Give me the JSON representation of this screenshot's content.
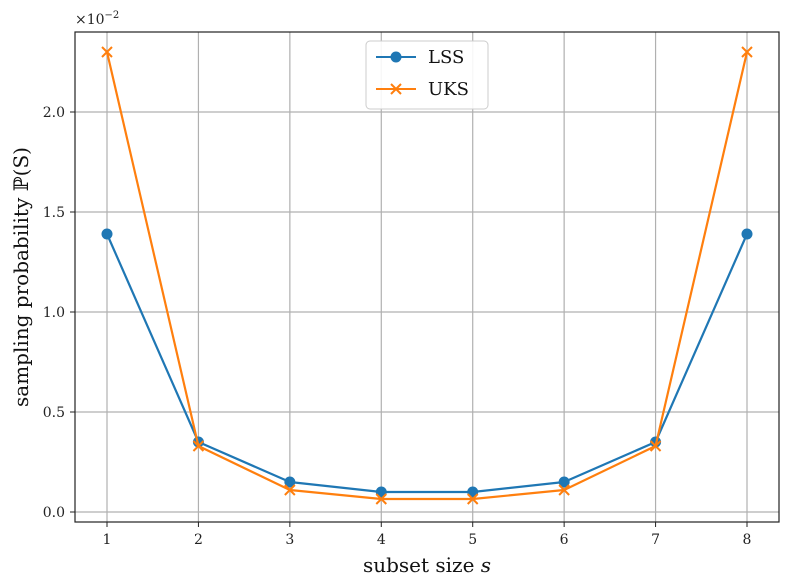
{
  "chart_data": {
    "type": "line",
    "x": [
      1,
      2,
      3,
      4,
      5,
      6,
      7,
      8
    ],
    "series": [
      {
        "name": "LSS",
        "values": [
          1.39,
          0.35,
          0.15,
          0.1,
          0.1,
          0.15,
          0.35,
          1.39
        ],
        "color": "#1f77b4",
        "marker": "circle"
      },
      {
        "name": "UKS",
        "values": [
          2.3,
          0.33,
          0.11,
          0.065,
          0.065,
          0.11,
          0.33,
          2.3
        ],
        "color": "#ff7f0e",
        "marker": "x"
      }
    ],
    "xlabel": "subset size ",
    "xlabel_var": "s",
    "ylabel": "sampling probability ",
    "ylabel_var": "ℙ(S)",
    "y_scale_label": "×10",
    "y_scale_exp": "−2",
    "xlim": [
      0.65,
      8.35
    ],
    "ylim": [
      -0.05,
      2.4
    ],
    "xticks": [
      "1",
      "2",
      "3",
      "4",
      "5",
      "6",
      "7",
      "8"
    ],
    "yticks": [
      "0.0",
      "0.5",
      "1.0",
      "1.5",
      "2.0"
    ],
    "ytick_values": [
      0,
      0.5,
      1.0,
      1.5,
      2.0
    ],
    "grid": true,
    "legend_position": "top-center"
  }
}
